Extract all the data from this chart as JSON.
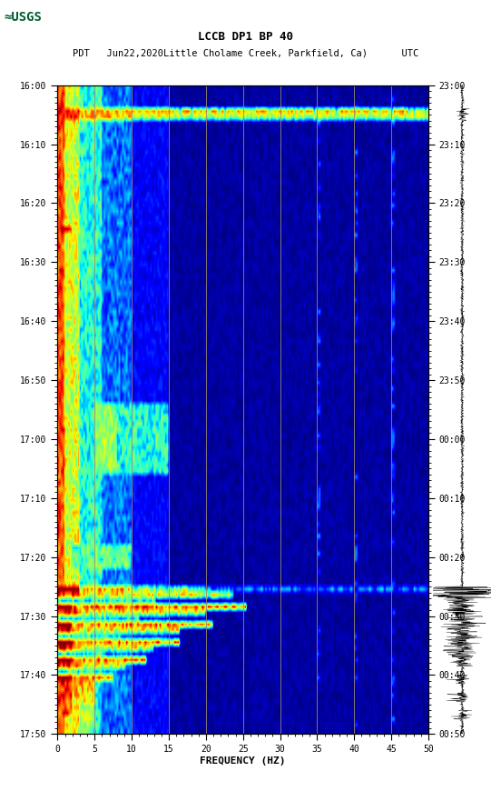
{
  "title_line1": "LCCB DP1 BP 40",
  "title_line2": "PDT   Jun22,2020Little Cholame Creek, Parkfield, Ca)      UTC",
  "left_yticks": [
    "16:00",
    "16:10",
    "16:20",
    "16:30",
    "16:40",
    "16:50",
    "17:00",
    "17:10",
    "17:20",
    "17:30",
    "17:40",
    "17:50"
  ],
  "right_yticks": [
    "23:00",
    "23:10",
    "23:20",
    "23:30",
    "23:40",
    "23:50",
    "00:00",
    "00:10",
    "00:20",
    "00:30",
    "00:40",
    "00:50"
  ],
  "xticks": [
    0,
    5,
    10,
    15,
    20,
    25,
    30,
    35,
    40,
    45,
    50
  ],
  "xlabel": "FREQUENCY (HZ)",
  "xgrid_lines": [
    5,
    10,
    15,
    20,
    25,
    30,
    35,
    40,
    45
  ],
  "freq_max": 50,
  "n_time": 110,
  "n_freq": 200,
  "background_color": "#ffffff",
  "grid_color": "#8B7355",
  "logo_color": "#005c2e"
}
